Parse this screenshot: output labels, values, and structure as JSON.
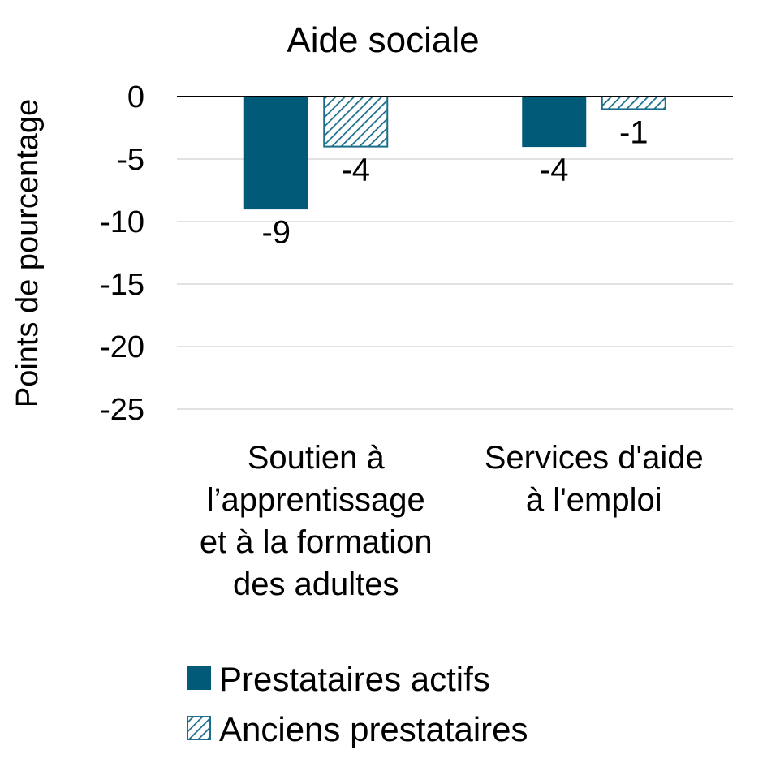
{
  "chart_data": {
    "type": "bar",
    "title": "Aide sociale",
    "xlabel": "",
    "ylabel": "Points de pourcentage",
    "ylim": [
      -25,
      0
    ],
    "yticks": [
      0,
      -5,
      -10,
      -15,
      -20,
      -25
    ],
    "grid": true,
    "legend_position": "bottom",
    "categories": [
      [
        "Soutien à",
        "l’apprentissage",
        "et à la formation",
        "des adultes"
      ],
      [
        "Services d'aide",
        "à l'emploi"
      ]
    ],
    "series": [
      {
        "name": "Prestataires actifs",
        "style": "solid",
        "values": [
          -9,
          -4
        ],
        "labels": [
          "-9",
          "-4"
        ]
      },
      {
        "name": "Anciens prestataires",
        "style": "hatched",
        "values": [
          -4,
          -1
        ],
        "labels": [
          "-4",
          "-1"
        ]
      }
    ],
    "colors": {
      "primary": "#005A78",
      "hatch": "#1A6E8C",
      "grid": "#D9D9D9",
      "axis": "#000000"
    }
  }
}
